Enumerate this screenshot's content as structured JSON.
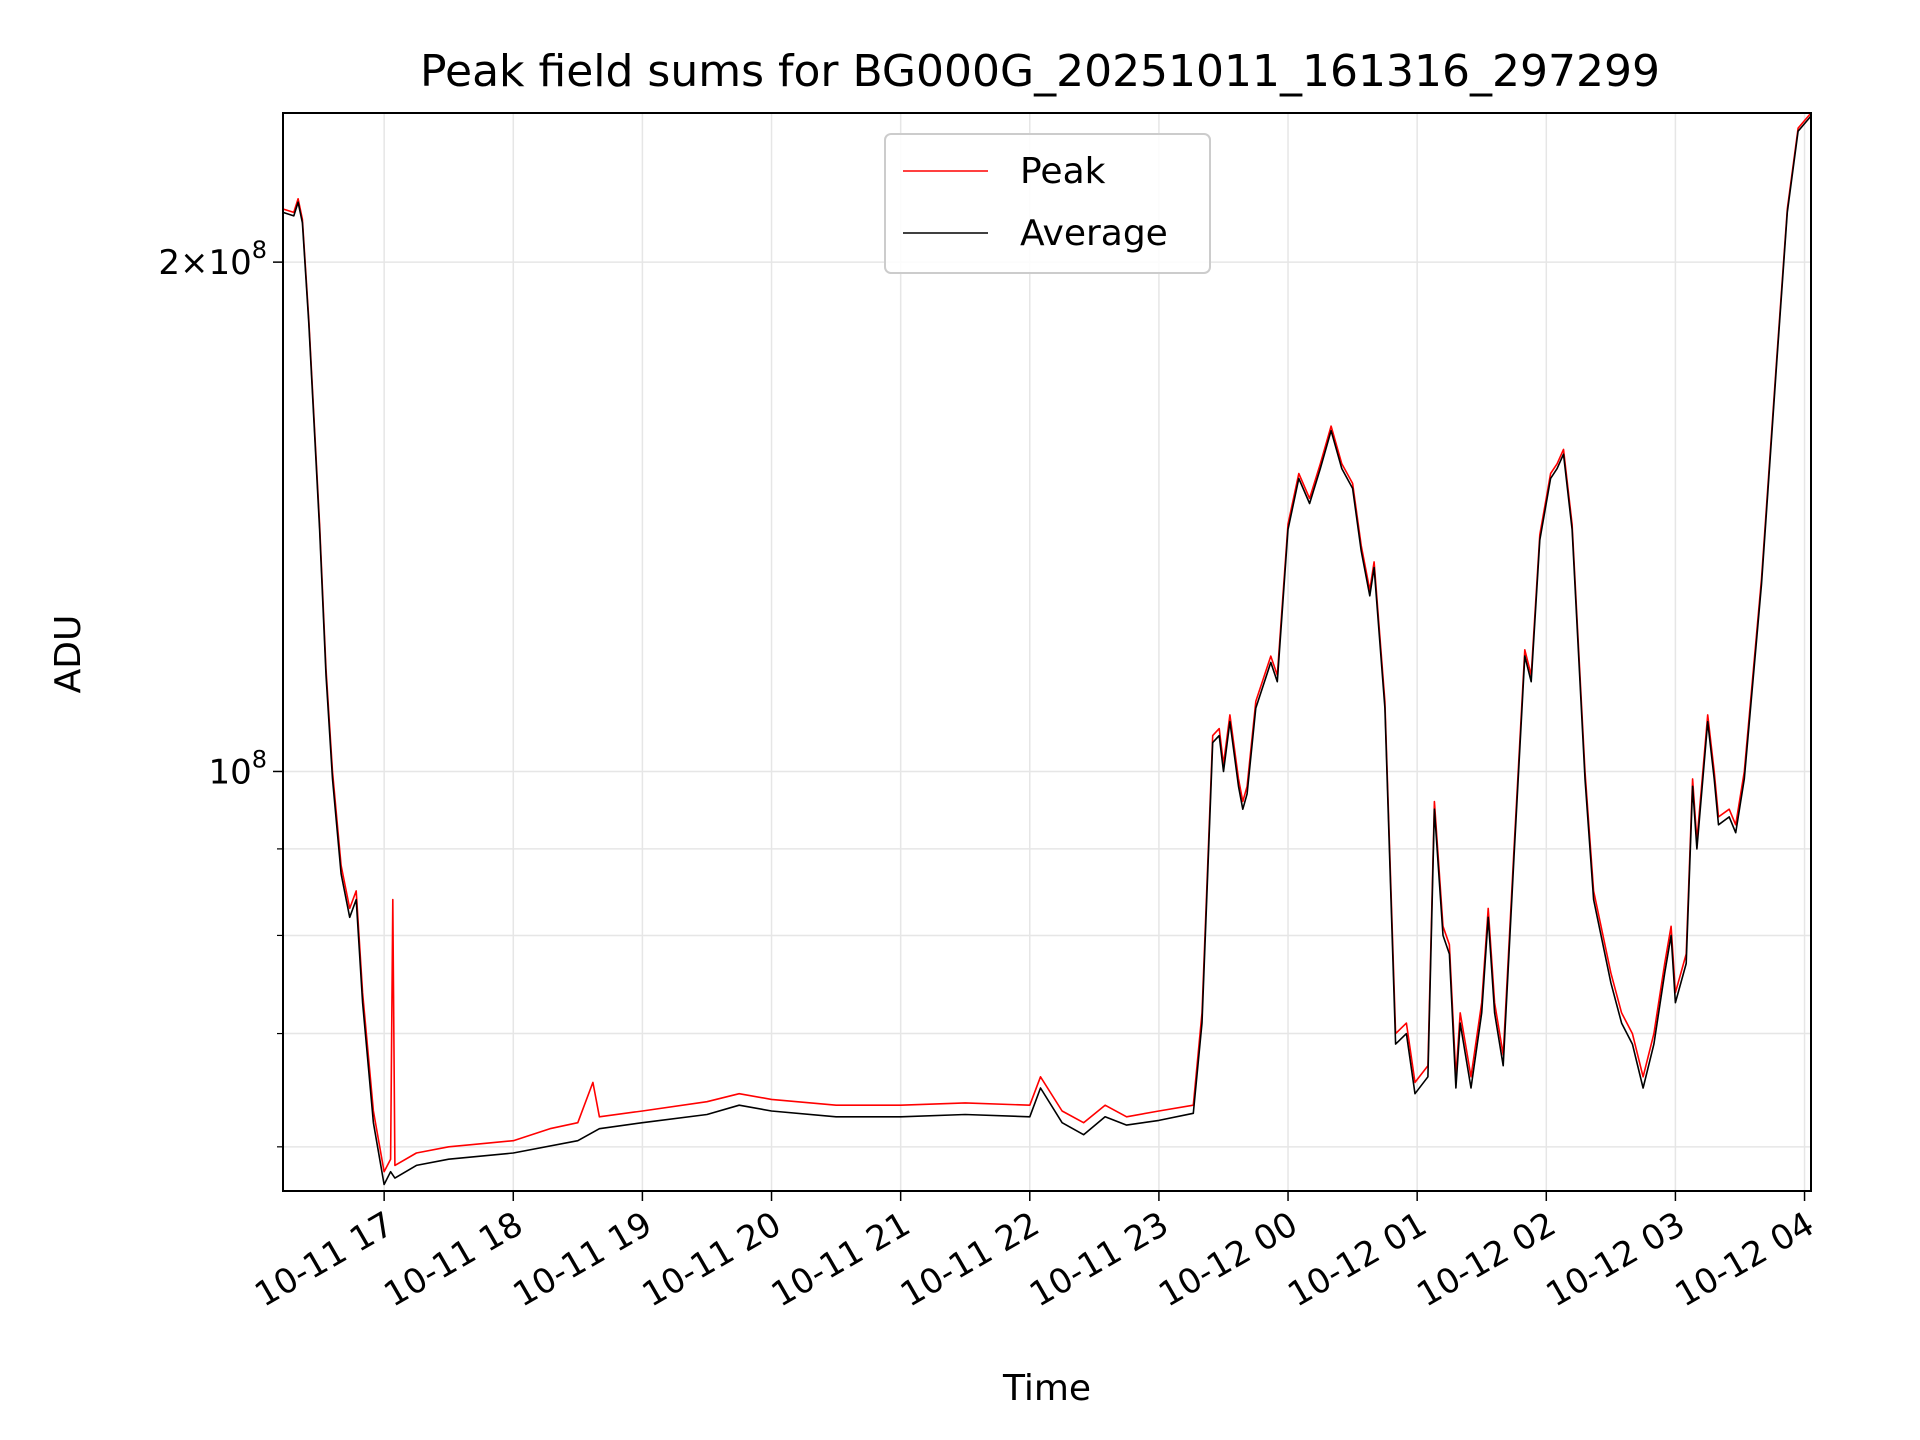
{
  "chart_data": {
    "type": "line",
    "title": "Peak field sums for BG000G_20251011_161316_297299",
    "xlabel": "Time",
    "ylabel": "ADU",
    "yscale": "log",
    "xlim": [
      "2025-10-11 16:13",
      "2025-10-12 04:03"
    ],
    "ylim": [
      56500000,
      245000000
    ],
    "grid": true,
    "legend_position": "upper center",
    "x_tick_labels": [
      "10-11 17",
      "10-11 18",
      "10-11 19",
      "10-11 20",
      "10-11 21",
      "10-11 22",
      "10-11 23",
      "10-12 00",
      "10-12 01",
      "10-12 02",
      "10-12 03",
      "10-12 04"
    ],
    "y_tick_labels": [
      {
        "value": 100000000,
        "base": "10",
        "exp": "8",
        "mult": ""
      },
      {
        "value": 200000000,
        "base": "10",
        "exp": "8",
        "mult": "2×"
      }
    ],
    "y_minor_ticks": [
      60000000,
      70000000,
      80000000,
      90000000
    ],
    "colors": {
      "Peak": "#ff0000",
      "Average": "#000000",
      "grid": "#e6e6e6"
    },
    "series": [
      {
        "name": "Peak",
        "points": [
          [
            "2025-10-11 16:13",
            215000000
          ],
          [
            "2025-10-11 16:18",
            214000000
          ],
          [
            "2025-10-11 16:20",
            218000000
          ],
          [
            "2025-10-11 16:22",
            212000000
          ],
          [
            "2025-10-11 16:25",
            185000000
          ],
          [
            "2025-10-11 16:30",
            140000000
          ],
          [
            "2025-10-11 16:33",
            115000000
          ],
          [
            "2025-10-11 16:36",
            100000000
          ],
          [
            "2025-10-11 16:40",
            88000000
          ],
          [
            "2025-10-11 16:44",
            83000000
          ],
          [
            "2025-10-11 16:47",
            85000000
          ],
          [
            "2025-10-11 16:50",
            74000000
          ],
          [
            "2025-10-11 16:55",
            63000000
          ],
          [
            "2025-10-11 17:00",
            58000000
          ],
          [
            "2025-10-11 17:03",
            59000000
          ],
          [
            "2025-10-11 17:04",
            84000000
          ],
          [
            "2025-10-11 17:05",
            58500000
          ],
          [
            "2025-10-11 17:15",
            59500000
          ],
          [
            "2025-10-11 17:30",
            60000000
          ],
          [
            "2025-10-11 18:00",
            60500000
          ],
          [
            "2025-10-11 18:17",
            61500000
          ],
          [
            "2025-10-11 18:30",
            62000000
          ],
          [
            "2025-10-11 18:37",
            65500000
          ],
          [
            "2025-10-11 18:40",
            62500000
          ],
          [
            "2025-10-11 19:00",
            63000000
          ],
          [
            "2025-10-11 19:30",
            63800000
          ],
          [
            "2025-10-11 19:45",
            64500000
          ],
          [
            "2025-10-11 20:00",
            64000000
          ],
          [
            "2025-10-11 20:30",
            63500000
          ],
          [
            "2025-10-11 21:00",
            63500000
          ],
          [
            "2025-10-11 21:30",
            63700000
          ],
          [
            "2025-10-11 22:00",
            63500000
          ],
          [
            "2025-10-11 22:05",
            66000000
          ],
          [
            "2025-10-11 22:15",
            63000000
          ],
          [
            "2025-10-11 22:25",
            62000000
          ],
          [
            "2025-10-11 22:35",
            63500000
          ],
          [
            "2025-10-11 22:45",
            62500000
          ],
          [
            "2025-10-11 23:00",
            63000000
          ],
          [
            "2025-10-11 23:16",
            63500000
          ],
          [
            "2025-10-11 23:20",
            72000000
          ],
          [
            "2025-10-11 23:25",
            105000000
          ],
          [
            "2025-10-11 23:28",
            106000000
          ],
          [
            "2025-10-11 23:30",
            101000000
          ],
          [
            "2025-10-11 23:33",
            108000000
          ],
          [
            "2025-10-11 23:37",
            99000000
          ],
          [
            "2025-10-11 23:39",
            96000000
          ],
          [
            "2025-10-11 23:41",
            98000000
          ],
          [
            "2025-10-11 23:45",
            110000000
          ],
          [
            "2025-10-11 23:52",
            117000000
          ],
          [
            "2025-10-11 23:55",
            114000000
          ],
          [
            "2025-10-12 00:00",
            140000000
          ],
          [
            "2025-10-12 00:05",
            150000000
          ],
          [
            "2025-10-12 00:10",
            145000000
          ],
          [
            "2025-10-12 00:15",
            152000000
          ],
          [
            "2025-10-12 00:20",
            160000000
          ],
          [
            "2025-10-12 00:25",
            152000000
          ],
          [
            "2025-10-12 00:30",
            148000000
          ],
          [
            "2025-10-12 00:34",
            136000000
          ],
          [
            "2025-10-12 00:38",
            128000000
          ],
          [
            "2025-10-12 00:40",
            133000000
          ],
          [
            "2025-10-12 00:45",
            110000000
          ],
          [
            "2025-10-12 00:50",
            70000000
          ],
          [
            "2025-10-12 00:55",
            71000000
          ],
          [
            "2025-10-12 00:59",
            65500000
          ],
          [
            "2025-10-12 01:05",
            67000000
          ],
          [
            "2025-10-12 01:08",
            96000000
          ],
          [
            "2025-10-12 01:12",
            81000000
          ],
          [
            "2025-10-12 01:15",
            79000000
          ],
          [
            "2025-10-12 01:18",
            66000000
          ],
          [
            "2025-10-12 01:20",
            72000000
          ],
          [
            "2025-10-12 01:25",
            66000000
          ],
          [
            "2025-10-12 01:30",
            73000000
          ],
          [
            "2025-10-12 01:33",
            83000000
          ],
          [
            "2025-10-12 01:36",
            73000000
          ],
          [
            "2025-10-12 01:40",
            68000000
          ],
          [
            "2025-10-12 01:45",
            90000000
          ],
          [
            "2025-10-12 01:50",
            118000000
          ],
          [
            "2025-10-12 01:53",
            114000000
          ],
          [
            "2025-10-12 01:57",
            138000000
          ],
          [
            "2025-10-12 02:02",
            150000000
          ],
          [
            "2025-10-12 02:05",
            152000000
          ],
          [
            "2025-10-12 02:08",
            155000000
          ],
          [
            "2025-10-12 02:12",
            140000000
          ],
          [
            "2025-10-12 02:18",
            100000000
          ],
          [
            "2025-10-12 02:22",
            85000000
          ],
          [
            "2025-10-12 02:30",
            76000000
          ],
          [
            "2025-10-12 02:35",
            72000000
          ],
          [
            "2025-10-12 02:40",
            70000000
          ],
          [
            "2025-10-12 02:45",
            66000000
          ],
          [
            "2025-10-12 02:50",
            70000000
          ],
          [
            "2025-10-12 02:55",
            77000000
          ],
          [
            "2025-10-12 02:58",
            81000000
          ],
          [
            "2025-10-12 03:00",
            74000000
          ],
          [
            "2025-10-12 03:05",
            78000000
          ],
          [
            "2025-10-12 03:08",
            99000000
          ],
          [
            "2025-10-12 03:10",
            91000000
          ],
          [
            "2025-10-12 03:15",
            108000000
          ],
          [
            "2025-10-12 03:18",
            100000000
          ],
          [
            "2025-10-12 03:20",
            94000000
          ],
          [
            "2025-10-12 03:25",
            95000000
          ],
          [
            "2025-10-12 03:28",
            93000000
          ],
          [
            "2025-10-12 03:32",
            100000000
          ],
          [
            "2025-10-12 03:40",
            130000000
          ],
          [
            "2025-10-12 03:47",
            175000000
          ],
          [
            "2025-10-12 03:52",
            215000000
          ],
          [
            "2025-10-12 03:57",
            240000000
          ],
          [
            "2025-10-12 04:03",
            245000000
          ]
        ]
      },
      {
        "name": "Average",
        "points": [
          [
            "2025-10-11 16:13",
            214000000
          ],
          [
            "2025-10-11 16:18",
            213000000
          ],
          [
            "2025-10-11 16:20",
            217000000
          ],
          [
            "2025-10-11 16:22",
            211000000
          ],
          [
            "2025-10-11 16:25",
            184000000
          ],
          [
            "2025-10-11 16:30",
            139000000
          ],
          [
            "2025-10-11 16:33",
            114000000
          ],
          [
            "2025-10-11 16:36",
            99000000
          ],
          [
            "2025-10-11 16:40",
            87000000
          ],
          [
            "2025-10-11 16:44",
            82000000
          ],
          [
            "2025-10-11 16:47",
            84000000
          ],
          [
            "2025-10-11 16:50",
            73000000
          ],
          [
            "2025-10-11 16:55",
            62000000
          ],
          [
            "2025-10-11 17:00",
            57000000
          ],
          [
            "2025-10-11 17:03",
            58000000
          ],
          [
            "2025-10-11 17:05",
            57500000
          ],
          [
            "2025-10-11 17:15",
            58500000
          ],
          [
            "2025-10-11 17:30",
            59000000
          ],
          [
            "2025-10-11 18:00",
            59500000
          ],
          [
            "2025-10-11 18:30",
            60500000
          ],
          [
            "2025-10-11 18:40",
            61500000
          ],
          [
            "2025-10-11 19:00",
            62000000
          ],
          [
            "2025-10-11 19:30",
            62700000
          ],
          [
            "2025-10-11 19:45",
            63500000
          ],
          [
            "2025-10-11 20:00",
            63000000
          ],
          [
            "2025-10-11 20:30",
            62500000
          ],
          [
            "2025-10-11 21:00",
            62500000
          ],
          [
            "2025-10-11 21:30",
            62700000
          ],
          [
            "2025-10-11 22:00",
            62500000
          ],
          [
            "2025-10-11 22:05",
            65000000
          ],
          [
            "2025-10-11 22:15",
            62000000
          ],
          [
            "2025-10-11 22:25",
            61000000
          ],
          [
            "2025-10-11 22:35",
            62500000
          ],
          [
            "2025-10-11 22:45",
            61800000
          ],
          [
            "2025-10-11 23:00",
            62200000
          ],
          [
            "2025-10-11 23:16",
            62800000
          ],
          [
            "2025-10-11 23:20",
            71000000
          ],
          [
            "2025-10-11 23:25",
            104000000
          ],
          [
            "2025-10-11 23:28",
            105000000
          ],
          [
            "2025-10-11 23:30",
            100000000
          ],
          [
            "2025-10-11 23:33",
            107000000
          ],
          [
            "2025-10-11 23:37",
            98000000
          ],
          [
            "2025-10-11 23:39",
            95000000
          ],
          [
            "2025-10-11 23:41",
            97000000
          ],
          [
            "2025-10-11 23:45",
            109000000
          ],
          [
            "2025-10-11 23:52",
            116000000
          ],
          [
            "2025-10-11 23:55",
            113000000
          ],
          [
            "2025-10-12 00:00",
            139000000
          ],
          [
            "2025-10-12 00:05",
            149000000
          ],
          [
            "2025-10-12 00:10",
            144000000
          ],
          [
            "2025-10-12 00:15",
            151000000
          ],
          [
            "2025-10-12 00:20",
            159000000
          ],
          [
            "2025-10-12 00:25",
            151000000
          ],
          [
            "2025-10-12 00:30",
            147000000
          ],
          [
            "2025-10-12 00:34",
            135000000
          ],
          [
            "2025-10-12 00:38",
            127000000
          ],
          [
            "2025-10-12 00:40",
            132000000
          ],
          [
            "2025-10-12 00:45",
            109000000
          ],
          [
            "2025-10-12 00:50",
            69000000
          ],
          [
            "2025-10-12 00:55",
            70000000
          ],
          [
            "2025-10-12 00:59",
            64500000
          ],
          [
            "2025-10-12 01:05",
            66000000
          ],
          [
            "2025-10-12 01:08",
            95000000
          ],
          [
            "2025-10-12 01:12",
            80000000
          ],
          [
            "2025-10-12 01:15",
            78000000
          ],
          [
            "2025-10-12 01:18",
            65000000
          ],
          [
            "2025-10-12 01:20",
            71000000
          ],
          [
            "2025-10-12 01:25",
            65000000
          ],
          [
            "2025-10-12 01:30",
            72000000
          ],
          [
            "2025-10-12 01:33",
            82000000
          ],
          [
            "2025-10-12 01:36",
            72000000
          ],
          [
            "2025-10-12 01:40",
            67000000
          ],
          [
            "2025-10-12 01:45",
            89000000
          ],
          [
            "2025-10-12 01:50",
            117000000
          ],
          [
            "2025-10-12 01:53",
            113000000
          ],
          [
            "2025-10-12 01:57",
            137000000
          ],
          [
            "2025-10-12 02:02",
            149000000
          ],
          [
            "2025-10-12 02:05",
            151000000
          ],
          [
            "2025-10-12 02:08",
            154000000
          ],
          [
            "2025-10-12 02:12",
            139000000
          ],
          [
            "2025-10-12 02:18",
            99000000
          ],
          [
            "2025-10-12 02:22",
            84000000
          ],
          [
            "2025-10-12 02:30",
            75000000
          ],
          [
            "2025-10-12 02:35",
            71000000
          ],
          [
            "2025-10-12 02:40",
            69000000
          ],
          [
            "2025-10-12 02:45",
            65000000
          ],
          [
            "2025-10-12 02:50",
            69000000
          ],
          [
            "2025-10-12 02:55",
            76000000
          ],
          [
            "2025-10-12 02:58",
            80000000
          ],
          [
            "2025-10-12 03:00",
            73000000
          ],
          [
            "2025-10-12 03:05",
            77000000
          ],
          [
            "2025-10-12 03:08",
            98000000
          ],
          [
            "2025-10-12 03:10",
            90000000
          ],
          [
            "2025-10-12 03:15",
            107000000
          ],
          [
            "2025-10-12 03:18",
            99000000
          ],
          [
            "2025-10-12 03:20",
            93000000
          ],
          [
            "2025-10-12 03:25",
            94000000
          ],
          [
            "2025-10-12 03:28",
            92000000
          ],
          [
            "2025-10-12 03:32",
            99000000
          ],
          [
            "2025-10-12 03:40",
            129000000
          ],
          [
            "2025-10-12 03:47",
            174000000
          ],
          [
            "2025-10-12 03:52",
            214000000
          ],
          [
            "2025-10-12 03:57",
            239000000
          ],
          [
            "2025-10-12 04:03",
            244000000
          ]
        ]
      }
    ]
  }
}
